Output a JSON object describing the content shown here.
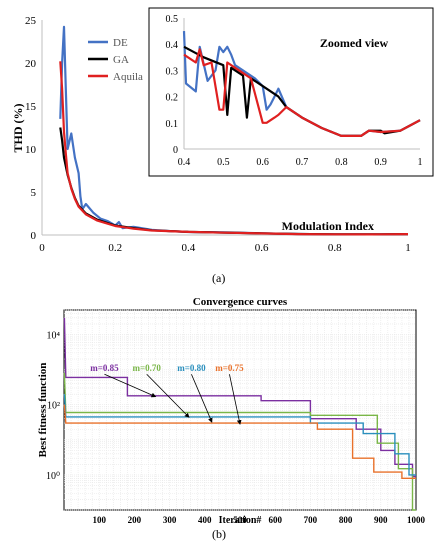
{
  "figure": {
    "panel_a_label": "(a)",
    "panel_b_label": "(b)"
  },
  "chart_data": [
    {
      "id": "thd",
      "type": "line",
      "ylabel": "THD (%)",
      "annotation": "Modulation Index",
      "xlim": [
        0,
        1
      ],
      "ylim": [
        0,
        25
      ],
      "xticks": [
        0,
        0.2,
        0.4,
        0.6,
        0.8,
        1
      ],
      "yticks": [
        0,
        5,
        10,
        15,
        20,
        25
      ],
      "grid": false,
      "legend": "top-left",
      "series": [
        {
          "name": "DE",
          "color": "#4472c4",
          "points": [
            [
              0.05,
              13.5
            ],
            [
              0.055,
              20
            ],
            [
              0.06,
              24.2
            ],
            [
              0.065,
              17
            ],
            [
              0.07,
              10
            ],
            [
              0.08,
              11.8
            ],
            [
              0.09,
              9
            ],
            [
              0.1,
              7.2
            ],
            [
              0.105,
              4.5
            ],
            [
              0.11,
              3
            ],
            [
              0.12,
              3.6
            ],
            [
              0.14,
              2.6
            ],
            [
              0.16,
              1.9
            ],
            [
              0.18,
              1.6
            ],
            [
              0.2,
              1.1
            ],
            [
              0.21,
              1.5
            ],
            [
              0.22,
              0.8
            ],
            [
              0.25,
              0.95
            ],
            [
              0.3,
              0.6
            ],
            [
              0.35,
              0.45
            ],
            [
              0.4,
              0.35
            ],
            [
              0.5,
              0.3
            ],
            [
              0.6,
              0.2
            ],
            [
              0.7,
              0.12
            ],
            [
              0.8,
              0.08
            ],
            [
              0.9,
              0.07
            ],
            [
              1.0,
              0.11
            ]
          ]
        },
        {
          "name": "GA",
          "color": "#000000",
          "points": [
            [
              0.05,
              12.5
            ],
            [
              0.055,
              11
            ],
            [
              0.06,
              9
            ],
            [
              0.07,
              7
            ],
            [
              0.08,
              5.5
            ],
            [
              0.09,
              4.3
            ],
            [
              0.1,
              3.4
            ],
            [
              0.12,
              2.5
            ],
            [
              0.15,
              1.8
            ],
            [
              0.2,
              1.1
            ],
            [
              0.25,
              0.8
            ],
            [
              0.3,
              0.55
            ],
            [
              0.4,
              0.36
            ],
            [
              0.5,
              0.28
            ],
            [
              0.6,
              0.2
            ],
            [
              0.7,
              0.12
            ],
            [
              0.8,
              0.08
            ],
            [
              0.9,
              0.07
            ],
            [
              1.0,
              0.11
            ]
          ]
        },
        {
          "name": "Aquila",
          "color": "#e02020",
          "points": [
            [
              0.05,
              20.2
            ],
            [
              0.055,
              17
            ],
            [
              0.06,
              12
            ],
            [
              0.065,
              9.5
            ],
            [
              0.07,
              7.2
            ],
            [
              0.08,
              5.4
            ],
            [
              0.09,
              4.2
            ],
            [
              0.1,
              3.3
            ],
            [
              0.12,
              2.4
            ],
            [
              0.15,
              1.7
            ],
            [
              0.2,
              1.05
            ],
            [
              0.25,
              0.75
            ],
            [
              0.3,
              0.52
            ],
            [
              0.4,
              0.36
            ],
            [
              0.5,
              0.27
            ],
            [
              0.6,
              0.19
            ],
            [
              0.7,
              0.11
            ],
            [
              0.8,
              0.08
            ],
            [
              0.9,
              0.07
            ],
            [
              1.0,
              0.11
            ]
          ]
        }
      ]
    },
    {
      "id": "zoom",
      "type": "line",
      "title": "Zoomed view",
      "xlim": [
        0.4,
        1
      ],
      "ylim": [
        0,
        0.5
      ],
      "xticks": [
        0.4,
        0.5,
        0.6,
        0.7,
        0.8,
        0.9,
        1
      ],
      "yticks": [
        0,
        0.1,
        0.2,
        0.3,
        0.4,
        0.5
      ],
      "grid": false,
      "series": [
        {
          "name": "DE",
          "color": "#4472c4",
          "points": [
            [
              0.4,
              0.45
            ],
            [
              0.405,
              0.25
            ],
            [
              0.43,
              0.22
            ],
            [
              0.44,
              0.39
            ],
            [
              0.46,
              0.26
            ],
            [
              0.48,
              0.3
            ],
            [
              0.49,
              0.39
            ],
            [
              0.5,
              0.37
            ],
            [
              0.51,
              0.39
            ],
            [
              0.52,
              0.36
            ],
            [
              0.53,
              0.32
            ],
            [
              0.55,
              0.3
            ],
            [
              0.58,
              0.27
            ],
            [
              0.6,
              0.24
            ],
            [
              0.61,
              0.15
            ],
            [
              0.62,
              0.17
            ],
            [
              0.63,
              0.2
            ],
            [
              0.64,
              0.23
            ],
            [
              0.66,
              0.16
            ],
            [
              0.7,
              0.12
            ],
            [
              0.75,
              0.08
            ],
            [
              0.8,
              0.05
            ],
            [
              0.85,
              0.05
            ],
            [
              0.87,
              0.07
            ],
            [
              0.9,
              0.065
            ],
            [
              0.95,
              0.07
            ],
            [
              1.0,
              0.11
            ]
          ]
        },
        {
          "name": "GA",
          "color": "#000000",
          "points": [
            [
              0.4,
              0.39
            ],
            [
              0.45,
              0.35
            ],
            [
              0.5,
              0.32
            ],
            [
              0.51,
              0.13
            ],
            [
              0.52,
              0.31
            ],
            [
              0.55,
              0.28
            ],
            [
              0.56,
              0.12
            ],
            [
              0.57,
              0.27
            ],
            [
              0.6,
              0.24
            ],
            [
              0.64,
              0.2
            ],
            [
              0.66,
              0.16
            ],
            [
              0.7,
              0.12
            ],
            [
              0.75,
              0.08
            ],
            [
              0.8,
              0.05
            ],
            [
              0.85,
              0.05
            ],
            [
              0.87,
              0.07
            ],
            [
              0.9,
              0.07
            ],
            [
              0.91,
              0.06
            ],
            [
              0.95,
              0.07
            ],
            [
              1.0,
              0.11
            ]
          ]
        },
        {
          "name": "Aquila",
          "color": "#e02020",
          "points": [
            [
              0.4,
              0.36
            ],
            [
              0.43,
              0.33
            ],
            [
              0.44,
              0.38
            ],
            [
              0.45,
              0.32
            ],
            [
              0.47,
              0.33
            ],
            [
              0.49,
              0.15
            ],
            [
              0.5,
              0.15
            ],
            [
              0.51,
              0.33
            ],
            [
              0.53,
              0.31
            ],
            [
              0.57,
              0.27
            ],
            [
              0.6,
              0.1
            ],
            [
              0.61,
              0.1
            ],
            [
              0.63,
              0.12
            ],
            [
              0.64,
              0.13
            ],
            [
              0.66,
              0.16
            ],
            [
              0.7,
              0.12
            ],
            [
              0.75,
              0.08
            ],
            [
              0.8,
              0.05
            ],
            [
              0.85,
              0.05
            ],
            [
              0.87,
              0.07
            ],
            [
              0.9,
              0.065
            ],
            [
              0.95,
              0.07
            ],
            [
              1.0,
              0.11
            ]
          ]
        }
      ]
    },
    {
      "id": "conv",
      "type": "line",
      "title": "Convergence curves",
      "xlabel": "Iteration#",
      "ylabel": "Best fitness function",
      "xlim": [
        0,
        1000
      ],
      "ylim": [
        0.1,
        50000
      ],
      "yscale": "log",
      "xticks": [
        100,
        200,
        300,
        400,
        500,
        600,
        700,
        800,
        900,
        1000
      ],
      "yticks": [
        1,
        100,
        10000
      ],
      "ytick_labels": [
        "10⁰",
        "10²",
        "10⁴"
      ],
      "grid": true,
      "series": [
        {
          "name": "m=0.85",
          "color": "#7b2fa0",
          "points": [
            [
              1,
              30000
            ],
            [
              5,
              600
            ],
            [
              180,
              600
            ],
            [
              180,
              180
            ],
            [
              560,
              180
            ],
            [
              560,
              130
            ],
            [
              700,
              130
            ],
            [
              700,
              40
            ],
            [
              830,
              40
            ],
            [
              830,
              20
            ],
            [
              900,
              20
            ],
            [
              900,
              5
            ],
            [
              940,
              5
            ],
            [
              940,
              2
            ],
            [
              990,
              2
            ],
            [
              990,
              0.9
            ],
            [
              1000,
              0.9
            ]
          ]
        },
        {
          "name": "m=0.70",
          "color": "#7ab648",
          "points": [
            [
              1,
              800
            ],
            [
              5,
              60
            ],
            [
              700,
              60
            ],
            [
              700,
              50
            ],
            [
              890,
              50
            ],
            [
              890,
              8
            ],
            [
              950,
              8
            ],
            [
              950,
              1.5
            ],
            [
              990,
              1.5
            ],
            [
              990,
              0.1
            ],
            [
              1000,
              0.1
            ]
          ]
        },
        {
          "name": "m=0.80",
          "color": "#2a8fbd",
          "points": [
            [
              1,
              200
            ],
            [
              5,
              45
            ],
            [
              700,
              45
            ],
            [
              700,
              30
            ],
            [
              850,
              30
            ],
            [
              850,
              15
            ],
            [
              940,
              15
            ],
            [
              940,
              4
            ],
            [
              980,
              4
            ],
            [
              980,
              1
            ],
            [
              1000,
              1
            ]
          ]
        },
        {
          "name": "m=0.75",
          "color": "#e8702a",
          "points": [
            [
              1,
              100
            ],
            [
              5,
              30
            ],
            [
              720,
              30
            ],
            [
              720,
              20
            ],
            [
              820,
              20
            ],
            [
              820,
              3
            ],
            [
              880,
              3
            ],
            [
              880,
              1.2
            ],
            [
              960,
              1.2
            ],
            [
              960,
              0.8
            ],
            [
              1000,
              0.8
            ]
          ]
        }
      ]
    }
  ]
}
